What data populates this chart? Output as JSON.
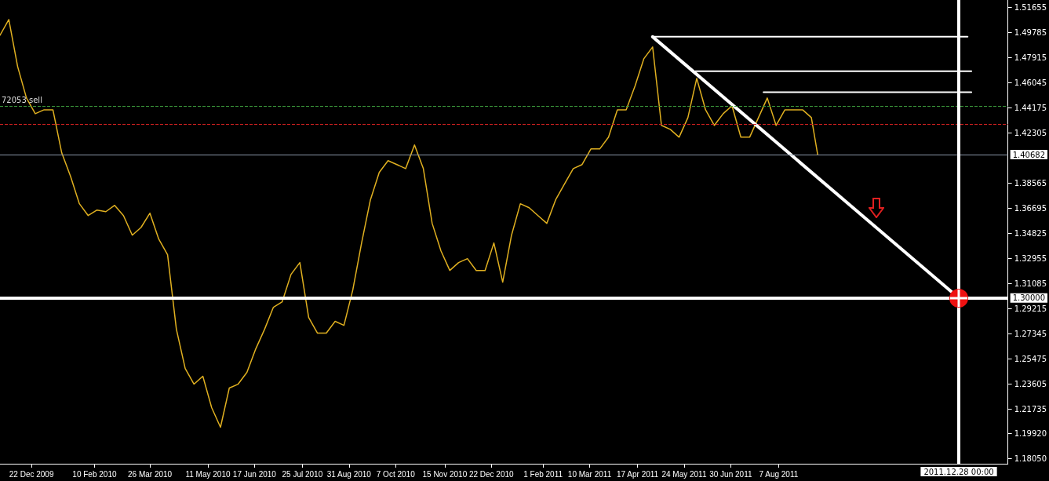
{
  "chart_data": {
    "type": "line",
    "grid": false,
    "line_style": "solid",
    "xlim": [
      "2009-11-27",
      "2012-02-05"
    ],
    "xticks": [
      {
        "value": "2009-12-22",
        "label": "22 Dec 2009"
      },
      {
        "value": "2010-02-10",
        "label": "10 Feb 2010"
      },
      {
        "value": "2010-03-26",
        "label": "26 Mar 2010"
      },
      {
        "value": "2010-05-11",
        "label": "11 May 2010"
      },
      {
        "value": "2010-06-17",
        "label": "17 Jun 2010"
      },
      {
        "value": "2010-07-25",
        "label": "25 Jul 2010"
      },
      {
        "value": "2010-08-31",
        "label": "31 Aug 2010"
      },
      {
        "value": "2010-10-07",
        "label": "7 Oct 2010"
      },
      {
        "value": "2010-11-15",
        "label": "15 Nov 2010"
      },
      {
        "value": "2010-12-22",
        "label": "22 Dec 2010"
      },
      {
        "value": "2011-02-01",
        "label": "1 Feb 2011"
      },
      {
        "value": "2011-03-10",
        "label": "10 Mar 2011"
      },
      {
        "value": "2011-04-17",
        "label": "17 Apr 2011"
      },
      {
        "value": "2011-05-24",
        "label": "24 May 2011"
      },
      {
        "value": "2011-06-30",
        "label": "30 Jun 2011"
      },
      {
        "value": "2011-08-07",
        "label": "7 Aug 2011"
      }
    ],
    "ylim": [
      1.1765,
      1.522
    ],
    "yticks": [
      {
        "value": 1.1805,
        "label": "1.18050"
      },
      {
        "value": 1.1992,
        "label": "1.19920"
      },
      {
        "value": 1.21735,
        "label": "1.21735"
      },
      {
        "value": 1.23605,
        "label": "1.23605"
      },
      {
        "value": 1.25475,
        "label": "1.25475"
      },
      {
        "value": 1.27345,
        "label": "1.27345"
      },
      {
        "value": 1.29215,
        "label": "1.29215"
      },
      {
        "value": 1.31085,
        "label": "1.31085"
      },
      {
        "value": 1.32955,
        "label": "1.32955"
      },
      {
        "value": 1.34825,
        "label": "1.34825"
      },
      {
        "value": 1.36695,
        "label": "1.36695"
      },
      {
        "value": 1.38565,
        "label": "1.38565"
      },
      {
        "value": 1.42305,
        "label": "1.42305"
      },
      {
        "value": 1.44175,
        "label": "1.44175"
      },
      {
        "value": 1.46045,
        "label": "1.46045"
      },
      {
        "value": 1.47915,
        "label": "1.47915"
      },
      {
        "value": 1.49785,
        "label": "1.49785"
      },
      {
        "value": 1.51655,
        "label": "1.51655"
      }
    ],
    "ref_lines": [
      {
        "axis": "y",
        "value": 1.4432,
        "label": "72053 sell",
        "color": "#3c9a3c",
        "line_style": "dashed"
      },
      {
        "axis": "y",
        "value": 1.4296,
        "label": null,
        "color": "#d02020",
        "line_style": "dashed"
      },
      {
        "axis": "y",
        "value": 1.40682,
        "label": "1.40682",
        "color": "#8a96a8",
        "line_style": "solid"
      },
      {
        "axis": "y",
        "value": 1.3,
        "label": "1.30000",
        "color": "#ffffff",
        "line_style": "solid"
      },
      {
        "axis": "x",
        "value": "2011-12-28",
        "label": "2011.12.28 00:00",
        "color": "#ffffff",
        "line_style": "solid"
      }
    ],
    "series": [
      {
        "color": "#e0b020",
        "x": [
          "2009-11-27",
          "2009-12-04",
          "2009-12-11",
          "2009-12-18",
          "2009-12-25",
          "2010-01-01",
          "2010-01-08",
          "2010-01-15",
          "2010-01-22",
          "2010-01-29",
          "2010-02-05",
          "2010-02-12",
          "2010-02-19",
          "2010-02-26",
          "2010-03-05",
          "2010-03-12",
          "2010-03-19",
          "2010-03-26",
          "2010-04-02",
          "2010-04-09",
          "2010-04-16",
          "2010-04-23",
          "2010-04-30",
          "2010-05-07",
          "2010-05-14",
          "2010-05-21",
          "2010-05-28",
          "2010-06-04",
          "2010-06-11",
          "2010-06-18",
          "2010-06-25",
          "2010-07-02",
          "2010-07-09",
          "2010-07-16",
          "2010-07-23",
          "2010-07-30",
          "2010-08-06",
          "2010-08-13",
          "2010-08-20",
          "2010-08-27",
          "2010-09-03",
          "2010-09-10",
          "2010-09-17",
          "2010-09-24",
          "2010-10-01",
          "2010-10-08",
          "2010-10-15",
          "2010-10-22",
          "2010-10-29",
          "2010-11-05",
          "2010-11-12",
          "2010-11-19",
          "2010-11-26",
          "2010-12-03",
          "2010-12-10",
          "2010-12-17",
          "2010-12-24",
          "2010-12-31",
          "2011-01-07",
          "2011-01-14",
          "2011-01-21",
          "2011-01-28",
          "2011-02-04",
          "2011-02-11",
          "2011-02-18",
          "2011-02-25",
          "2011-03-04",
          "2011-03-11",
          "2011-03-18",
          "2011-03-25",
          "2011-04-01",
          "2011-04-08",
          "2011-04-15",
          "2011-04-22",
          "2011-04-29",
          "2011-05-06",
          "2011-05-13",
          "2011-05-20",
          "2011-05-27",
          "2011-06-03",
          "2011-06-10",
          "2011-06-17",
          "2011-06-24",
          "2011-07-01",
          "2011-07-08",
          "2011-07-15",
          "2011-07-22",
          "2011-07-29",
          "2011-08-05",
          "2011-08-12",
          "2011-08-19",
          "2011-08-26",
          "2011-09-02",
          "2011-09-07"
        ],
        "values": [
          1.4957,
          1.5074,
          1.4724,
          1.449,
          1.4373,
          1.4402,
          1.4402,
          1.4081,
          1.3906,
          1.3702,
          1.3614,
          1.3655,
          1.3643,
          1.369,
          1.3614,
          1.3468,
          1.3526,
          1.3632,
          1.3439,
          1.3322,
          1.2767,
          1.2475,
          1.2358,
          1.2417,
          1.2183,
          1.2037,
          1.2329,
          1.2358,
          1.2446,
          1.2621,
          1.2767,
          1.2931,
          1.2972,
          1.3176,
          1.3264,
          1.2855,
          1.2738,
          1.2738,
          1.2826,
          1.2796,
          1.3059,
          1.341,
          1.3731,
          1.3935,
          1.4023,
          1.3994,
          1.3964,
          1.414,
          1.3964,
          1.3556,
          1.3351,
          1.3205,
          1.3264,
          1.3293,
          1.3205,
          1.3205,
          1.341,
          1.3118,
          1.3468,
          1.3702,
          1.3672,
          1.3614,
          1.3556,
          1.3731,
          1.3848,
          1.3964,
          1.3994,
          1.411,
          1.411,
          1.4198,
          1.4402,
          1.4402,
          1.4578,
          1.4782,
          1.487,
          1.4286,
          1.4256,
          1.4198,
          1.4344,
          1.4636,
          1.4402,
          1.4286,
          1.4373,
          1.4432,
          1.4198,
          1.4198,
          1.4344,
          1.449,
          1.4286,
          1.4402,
          1.4402,
          1.4402,
          1.4344,
          1.4068
        ]
      },
      {
        "type": "line",
        "color": "#ffffff",
        "x": [
          "2011-04-29",
          "2011-12-28"
        ],
        "values": [
          1.4946,
          1.3
        ]
      },
      {
        "type": "line",
        "color": "#ffffff",
        "x": [
          "2011-04-29",
          "2012-01-04"
        ],
        "values": [
          1.4946,
          1.4946
        ]
      },
      {
        "type": "line",
        "color": "#ffffff",
        "x": [
          "2011-06-02",
          "2012-01-07"
        ],
        "values": [
          1.4689,
          1.4689
        ]
      },
      {
        "type": "line",
        "color": "#ffffff",
        "x": [
          "2011-07-26",
          "2012-01-07"
        ],
        "values": [
          1.4533,
          1.4533
        ]
      }
    ]
  }
}
